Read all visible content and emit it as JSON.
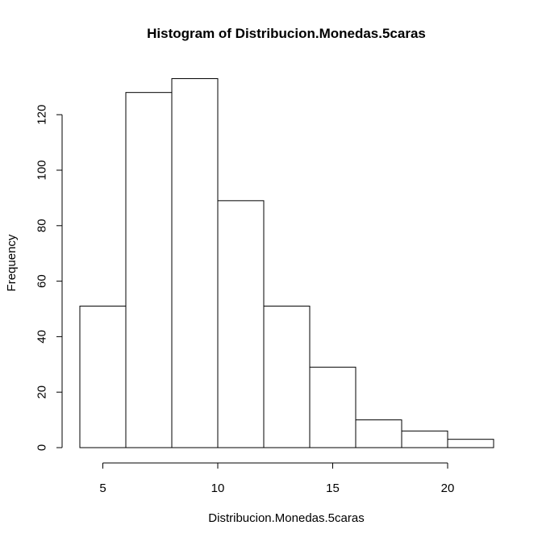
{
  "chart_data": {
    "type": "bar",
    "title": "Histogram of Distribucion.Monedas.5caras",
    "xlabel": "Distribucion.Monedas.5caras",
    "ylabel": "Frequency",
    "bins": [
      {
        "from": 4,
        "to": 6,
        "count": 51
      },
      {
        "from": 6,
        "to": 8,
        "count": 128
      },
      {
        "from": 8,
        "to": 10,
        "count": 133
      },
      {
        "from": 10,
        "to": 12,
        "count": 89
      },
      {
        "from": 12,
        "to": 14,
        "count": 51
      },
      {
        "from": 14,
        "to": 16,
        "count": 29
      },
      {
        "from": 16,
        "to": 18,
        "count": 10
      },
      {
        "from": 18,
        "to": 20,
        "count": 6
      },
      {
        "from": 20,
        "to": 22,
        "count": 3
      }
    ],
    "xlim": [
      4,
      22
    ],
    "ylim": [
      0,
      133
    ],
    "x_ticks": [
      5,
      10,
      15,
      20
    ],
    "y_ticks": [
      0,
      20,
      40,
      60,
      80,
      100,
      120
    ],
    "grid": false,
    "legend": "none"
  }
}
